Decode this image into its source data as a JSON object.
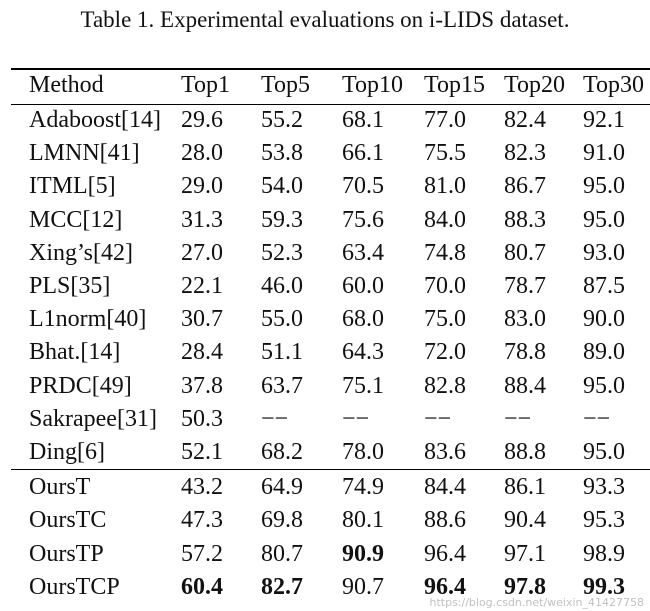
{
  "caption": "Table 1. Experimental evaluations on i-LIDS dataset.",
  "headers": [
    "Method",
    "Top1",
    "Top5",
    "Top10",
    "Top15",
    "Top20",
    "Top30"
  ],
  "rows": [
    [
      "Adaboost[14]",
      "29.6",
      "55.2",
      "68.1",
      "77.0",
      "82.4",
      "92.1"
    ],
    [
      "LMNN[41]",
      "28.0",
      "53.8",
      "66.1",
      "75.5",
      "82.3",
      "91.0"
    ],
    [
      "ITML[5]",
      "29.0",
      "54.0",
      "70.5",
      "81.0",
      "86.7",
      "95.0"
    ],
    [
      "MCC[12]",
      "31.3",
      "59.3",
      "75.6",
      "84.0",
      "88.3",
      "95.0"
    ],
    [
      "Xing’s[42]",
      "27.0",
      "52.3",
      "63.4",
      "74.8",
      "80.7",
      "93.0"
    ],
    [
      "PLS[35]",
      "22.1",
      "46.0",
      "60.0",
      "70.0",
      "78.7",
      "87.5"
    ],
    [
      "L1norm[40]",
      "30.7",
      "55.0",
      "68.0",
      "75.0",
      "83.0",
      "90.0"
    ],
    [
      "Bhat.[14]",
      "28.4",
      "51.1",
      "64.3",
      "72.0",
      "78.8",
      "89.0"
    ],
    [
      "PRDC[49]",
      "37.8",
      "63.7",
      "75.1",
      "82.8",
      "88.4",
      "95.0"
    ],
    [
      "Sakrapee[31]",
      "50.3",
      "−−",
      "−−",
      "−−",
      "−−",
      "−−"
    ],
    [
      "Ding[6]",
      "52.1",
      "68.2",
      "78.0",
      "83.6",
      "88.8",
      "95.0"
    ],
    [
      "OursT",
      "43.2",
      "64.9",
      "74.9",
      "84.4",
      "86.1",
      "93.3"
    ],
    [
      "OursTC",
      "47.3",
      "69.8",
      "80.1",
      "88.6",
      "90.4",
      "95.3"
    ],
    [
      "OursTP",
      "57.2",
      "80.7",
      "90.9",
      "96.4",
      "97.1",
      "98.9"
    ],
    [
      "OursTCP",
      "60.4",
      "82.7",
      "90.7",
      "96.4",
      "97.8",
      "99.3"
    ]
  ],
  "bold_cells": [
    [
      13,
      3
    ],
    [
      14,
      1
    ],
    [
      14,
      2
    ],
    [
      14,
      4
    ],
    [
      14,
      5
    ],
    [
      14,
      6
    ]
  ],
  "watermark": "https://blog.csdn.net/weixin_41427758"
}
